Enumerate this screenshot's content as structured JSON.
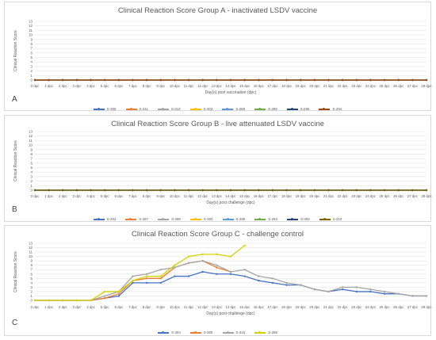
{
  "chart_data": [
    {
      "type": "line",
      "panel_label": "A",
      "title": "Clinical Reaction Score Group A - inactivated LSDV vaccine",
      "xlabel": "Day(s) post vaccination (dpc)",
      "ylabel": "Clinical Reaction Score",
      "ylim": [
        0,
        13
      ],
      "yticks": [
        0,
        1,
        2,
        3,
        4,
        5,
        6,
        7,
        8,
        9,
        10,
        11,
        12,
        13
      ],
      "grid": true,
      "legend_position": "bottom",
      "categories": [
        "0 dpc",
        "1 dpc",
        "2 dpc",
        "3 dpc",
        "4 dpc",
        "5 dpc",
        "6 dpc",
        "7 dpc",
        "8 dpc",
        "9 dpc",
        "10 dpc",
        "11 dpc",
        "12 dpc",
        "13 dpc",
        "14 dpc",
        "15 dpc",
        "16 dpc",
        "17 dpc",
        "18 dpc",
        "19 dpc",
        "20 dpc",
        "21 dpc",
        "22 dpc",
        "23 dpc",
        "24 dpc",
        "25 dpc",
        "26 dpc",
        "27 dpc",
        "28 dpc"
      ],
      "series": [
        {
          "name": "S-306",
          "color": "#4472c4",
          "values": [
            0,
            0,
            0,
            0,
            0,
            0,
            0,
            0,
            0,
            0,
            0,
            0,
            0,
            0,
            0,
            0,
            0,
            0,
            0,
            0,
            0,
            0,
            0,
            0,
            0,
            0,
            0,
            0,
            0
          ]
        },
        {
          "name": "S-311",
          "color": "#ed7d31",
          "values": [
            0,
            0,
            0,
            0,
            0,
            0,
            0,
            0,
            0,
            0,
            0,
            0,
            0,
            0,
            0,
            0,
            0,
            0,
            0,
            0,
            0,
            0,
            0,
            0,
            0,
            0,
            0,
            0,
            0
          ]
        },
        {
          "name": "S-313",
          "color": "#a5a5a5",
          "values": [
            0,
            0,
            0,
            0,
            0,
            0,
            0,
            0,
            0,
            0,
            0,
            0,
            0,
            0,
            0,
            0,
            0,
            0,
            0,
            0,
            0,
            0,
            0,
            0,
            0,
            0,
            0,
            0,
            0
          ]
        },
        {
          "name": "S-303",
          "color": "#ffc000",
          "values": [
            0,
            0,
            0,
            0,
            0,
            0,
            0,
            0,
            0,
            0,
            0,
            0,
            0,
            0,
            0,
            0,
            0,
            0,
            0,
            0,
            0,
            0,
            0,
            0,
            0,
            0,
            0,
            0,
            0
          ]
        },
        {
          "name": "S-288",
          "color": "#5b9bd5",
          "values": [
            0,
            0,
            0,
            0,
            0,
            0,
            0,
            0,
            0,
            0,
            0,
            0,
            0,
            0,
            0,
            0,
            0,
            0,
            0,
            0,
            0,
            0,
            0,
            0,
            0,
            0,
            0,
            0,
            0
          ]
        },
        {
          "name": "S-289",
          "color": "#70ad47",
          "values": [
            0,
            0,
            0,
            0,
            0,
            0,
            0,
            0,
            0,
            0,
            0,
            0,
            0,
            0,
            0,
            0,
            0,
            0,
            0,
            0,
            0,
            0,
            0,
            0,
            0,
            0,
            0,
            0,
            0
          ]
        },
        {
          "name": "S-296",
          "color": "#264478",
          "values": [
            0,
            0,
            0,
            0,
            0,
            0,
            0,
            0,
            0,
            0,
            0,
            0,
            0,
            0,
            0,
            0,
            0,
            0,
            0,
            0,
            0,
            0,
            0,
            0,
            0,
            0,
            0,
            0,
            0
          ]
        },
        {
          "name": "S-284",
          "color": "#9e480e",
          "values": [
            0,
            0,
            0,
            0,
            0,
            0,
            0,
            0,
            0,
            0,
            0,
            0,
            0,
            0,
            0,
            0,
            0,
            0,
            0,
            0,
            0,
            0,
            0,
            0,
            0,
            0,
            0,
            0,
            0
          ]
        }
      ]
    },
    {
      "type": "line",
      "panel_label": "B",
      "title": "Clinical Reaction Score Group B - live attenuated LSDV vaccine",
      "xlabel": "Day(s) post challenge (dpc)",
      "ylabel": "Clinical Reaction Score",
      "ylim": [
        0,
        13
      ],
      "yticks": [
        0,
        1,
        2,
        3,
        4,
        5,
        6,
        7,
        8,
        9,
        10,
        11,
        12,
        13
      ],
      "grid": true,
      "legend_position": "bottom",
      "categories": [
        "0 dpc",
        "1 dpc",
        "2 dpc",
        "3 dpc",
        "4 dpc",
        "5 dpc",
        "6 dpc",
        "7 dpc",
        "8 dpc",
        "9 dpc",
        "10 dpc",
        "11 dpc",
        "12 dpc",
        "13 dpc",
        "14 dpc",
        "15 dpc",
        "16 dpc",
        "17 dpc",
        "18 dpc",
        "19 dpc",
        "20 dpc",
        "21 dpc",
        "22 dpc",
        "23 dpc",
        "24 dpc",
        "25 dpc",
        "26 dpc",
        "27 dpc",
        "28 dpc"
      ],
      "series": [
        {
          "name": "S-294",
          "color": "#4472c4",
          "values": [
            0,
            0,
            0,
            0,
            0,
            0,
            0,
            0,
            0,
            0,
            0,
            0,
            0,
            0,
            0,
            0,
            0,
            0,
            0,
            0,
            0,
            0,
            0,
            0,
            0,
            0,
            0,
            0,
            0
          ]
        },
        {
          "name": "S-287",
          "color": "#ed7d31",
          "values": [
            0,
            0,
            0,
            0,
            0,
            0,
            0,
            0,
            0,
            0,
            0,
            0,
            0,
            0,
            0,
            0,
            0,
            0,
            0,
            0,
            0,
            0,
            0,
            0,
            0,
            0,
            0,
            0,
            0
          ]
        },
        {
          "name": "S-299",
          "color": "#a5a5a5",
          "values": [
            0,
            0,
            0,
            0,
            0,
            0,
            0,
            0,
            0,
            0,
            0,
            0,
            0,
            0,
            0,
            0,
            0,
            0,
            0,
            0,
            0,
            0,
            0,
            0,
            0,
            0,
            0,
            0,
            0
          ]
        },
        {
          "name": "S-300",
          "color": "#ffc000",
          "values": [
            0,
            0,
            0,
            0,
            0,
            0,
            0,
            0,
            0,
            0,
            0,
            0,
            0,
            0,
            0,
            0,
            0,
            0,
            0,
            0,
            0,
            0,
            0,
            0,
            0,
            0,
            0,
            0,
            0
          ]
        },
        {
          "name": "S-286",
          "color": "#5b9bd5",
          "values": [
            0,
            0,
            0,
            0,
            0,
            0,
            0,
            0,
            0,
            0,
            0,
            0,
            0,
            0,
            0,
            0,
            0,
            0,
            0,
            0,
            0,
            0,
            0,
            0,
            0,
            0,
            0,
            0,
            0
          ]
        },
        {
          "name": "S-293",
          "color": "#70ad47",
          "values": [
            0,
            0,
            0,
            0,
            0,
            0,
            0,
            0,
            0,
            0,
            0,
            0,
            0,
            0,
            0,
            0,
            0,
            0,
            0,
            0,
            0,
            0,
            0,
            0,
            0,
            0,
            0,
            0,
            0
          ]
        },
        {
          "name": "S-305",
          "color": "#264478",
          "values": [
            0,
            0,
            0,
            0,
            0,
            0,
            0,
            0,
            0,
            0,
            0,
            0,
            0,
            0,
            0,
            0,
            0,
            0,
            0,
            0,
            0,
            0,
            0,
            0,
            0,
            0,
            0,
            0,
            0
          ]
        },
        {
          "name": "S-310",
          "color": "#806000",
          "values": [
            0,
            0,
            0,
            0,
            0,
            0,
            0,
            0,
            0,
            0,
            0,
            0,
            0,
            0,
            0,
            0,
            0,
            0,
            0,
            0,
            0,
            0,
            0,
            0,
            0,
            0,
            0,
            0,
            0
          ]
        }
      ]
    },
    {
      "type": "line",
      "panel_label": "C",
      "title": "Clinical Reaction Score Group C - challenge control",
      "xlabel": "Day(s) post challenge (dpc)",
      "ylabel": "Clinical Reaction Score",
      "ylim": [
        0,
        13
      ],
      "yticks": [
        0,
        1,
        2,
        3,
        4,
        5,
        6,
        7,
        8,
        9,
        10,
        11,
        12,
        13
      ],
      "grid": true,
      "legend_position": "bottom",
      "categories": [
        "0 dpc",
        "1 dpc",
        "2 dpc",
        "3 dpc",
        "4 dpc",
        "5 dpc",
        "6 dpc",
        "7 dpc",
        "8 dpc",
        "9 dpc",
        "10 dpc",
        "11 dpc",
        "12 dpc",
        "13 dpc",
        "14 dpc",
        "15 dpc",
        "16 dpc",
        "17 dpc",
        "18 dpc",
        "19 dpc",
        "20 dpc",
        "21 dpc",
        "22 dpc",
        "23 dpc",
        "24 dpc",
        "25 dpc",
        "26 dpc",
        "27 dpc",
        "28 dpc"
      ],
      "series": [
        {
          "name": "S-304",
          "color": "#4472c4",
          "values": [
            0,
            0,
            0,
            0,
            0,
            0.5,
            1,
            4,
            4,
            4,
            5.5,
            5.5,
            6.5,
            6,
            6,
            5.5,
            4.5,
            4,
            3.5,
            3.5,
            2.5,
            2,
            2.5,
            2,
            2,
            1.5,
            1.5,
            1,
            1
          ]
        },
        {
          "name": "S-309",
          "color": "#ed7d31",
          "values": [
            0,
            0,
            0,
            0,
            0,
            0.5,
            1.5,
            4.5,
            5,
            5,
            7.5,
            8.5,
            9,
            7.5,
            6.5,
            null,
            null,
            null,
            null,
            null,
            null,
            null,
            null,
            null,
            null,
            null,
            null,
            null,
            null
          ]
        },
        {
          "name": "S-315",
          "color": "#a5a5a5",
          "values": [
            0,
            0,
            0,
            0,
            0,
            1,
            2,
            5.5,
            6,
            7,
            7.5,
            8.5,
            9,
            8,
            6.5,
            7,
            5.5,
            5,
            4,
            3.5,
            2.5,
            2,
            3,
            3,
            2.5,
            2,
            1.5,
            1,
            1
          ]
        },
        {
          "name": "S-298",
          "color": "#d4d400",
          "values": [
            0,
            0,
            0,
            0,
            0,
            2,
            2,
            4.5,
            5.5,
            5.5,
            8,
            10,
            10.5,
            10.5,
            10,
            12.5,
            null,
            null,
            null,
            null,
            null,
            null,
            null,
            null,
            null,
            null,
            null,
            null,
            null
          ]
        }
      ]
    }
  ]
}
